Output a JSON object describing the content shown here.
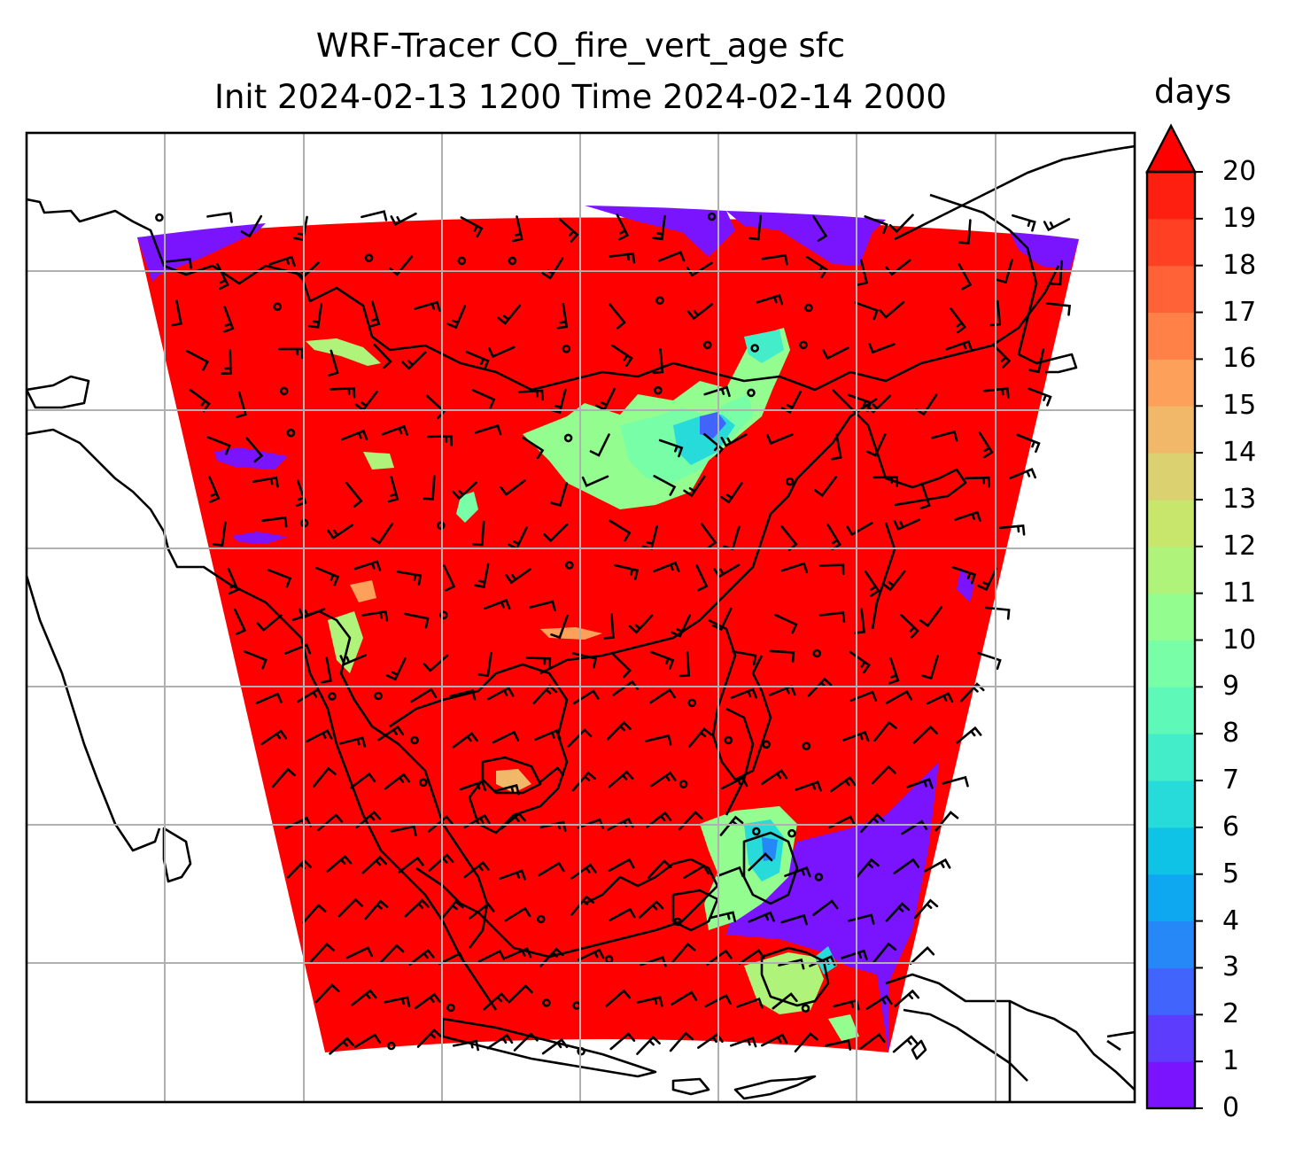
{
  "title": {
    "line1": "WRF-Tracer CO_fire_vert_age sfc",
    "line2": "Init 2024-02-13 1200 Time 2024-02-14 2000"
  },
  "colorbar": {
    "units": "days",
    "ticks": [
      "0",
      "1",
      "2",
      "3",
      "4",
      "5",
      "6",
      "7",
      "8",
      "9",
      "10",
      "11",
      "12",
      "13",
      "14",
      "15",
      "16",
      "17",
      "18",
      "19",
      "20"
    ],
    "extend": "max",
    "colormap": "rainbow",
    "colors": [
      "#7a14ff",
      "#5e3cfe",
      "#4064fc",
      "#2688f7",
      "#0da8f0",
      "#0ec3e6",
      "#28dbdb",
      "#44edca",
      "#5ef8b8",
      "#78fea6",
      "#94fd90",
      "#b0f37a",
      "#c8e66c",
      "#dcd170",
      "#f0b868",
      "#fca05a",
      "#ff8148",
      "#ff6236",
      "#ff4022",
      "#ff1f10"
    ],
    "extend_color": "#ff0000"
  },
  "map": {
    "background_color": "#ff0000",
    "low_value_color": "#7a14ff",
    "gridlines": true,
    "overlay": "wind barbs and coastlines"
  }
}
